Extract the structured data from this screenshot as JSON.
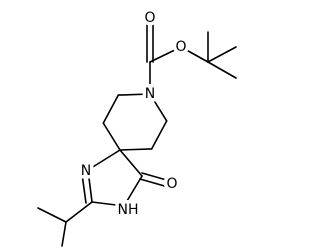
{
  "atoms": [
    {
      "label": "O"
    },
    {
      "label": "O"
    },
    {
      "label": "N"
    },
    {
      "label": "N"
    },
    {
      "label": "O"
    },
    {
      "label": "NH"
    }
  ]
}
